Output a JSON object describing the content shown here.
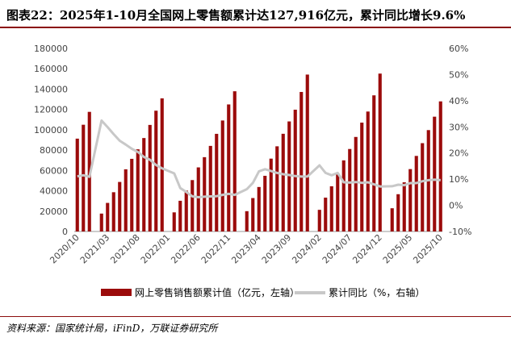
{
  "title": "图表22：2025年1-10月全国网上零售额累计达127,916亿元，累计同比增长9.6%",
  "source": "资料来源：国家统计局，iFinD，万联证券研究所",
  "colors": {
    "bar": "#9b0b0b",
    "line": "#c8c8c8",
    "accent": "#8b0d0d"
  },
  "chart_data": {
    "type": "bar",
    "categories": [
      "2020/10",
      "2020/11",
      "2020/12",
      "2021/02",
      "2021/03",
      "2021/04",
      "2021/05",
      "2021/06",
      "2021/07",
      "2021/08",
      "2021/09",
      "2021/10",
      "2021/11",
      "2021/12",
      "2022/02",
      "2022/03",
      "2022/04",
      "2022/05",
      "2022/06",
      "2022/07",
      "2022/08",
      "2022/09",
      "2022/10",
      "2022/11",
      "2022/12",
      "2023/02",
      "2023/03",
      "2023/04",
      "2023/05",
      "2023/06",
      "2023/07",
      "2023/08",
      "2023/09",
      "2023/10",
      "2023/11",
      "2023/12",
      "2024/02",
      "2024/03",
      "2024/04",
      "2024/05",
      "2024/06",
      "2024/07",
      "2024/08",
      "2024/09",
      "2024/10",
      "2024/11",
      "2024/12",
      "2025/02",
      "2025/03",
      "2025/04",
      "2025/05",
      "2025/06",
      "2025/07",
      "2025/08",
      "2025/09",
      "2025/10"
    ],
    "x_tick_labels": [
      "2020/10",
      "2021/03",
      "2021/08",
      "2022/01",
      "2022/06",
      "2022/11",
      "2023/04",
      "2023/09",
      "2024/02",
      "2024/07",
      "2024/12",
      "2025/05",
      "2025/10"
    ],
    "series": [
      {
        "name": "网上零售销售额累计值（亿元，左轴）",
        "axis": "left",
        "values": [
          91275,
          104938,
          117601,
          17587,
          28093,
          38591,
          48693,
          61133,
          71416,
          80799,
          91871,
          104765,
          118749,
          130884,
          18791,
          30184,
          40249,
          50534,
          63007,
          73056,
          84143,
          95993,
          109124,
          124903,
          137853,
          19962,
          32863,
          43736,
          54737,
          71621,
          83735,
          96048,
          108198,
          119731,
          137166,
          154264,
          21288,
          33257,
          44436,
          56077,
          69932,
          81096,
          92938,
          107022,
          117921,
          133840,
          155225,
          22839,
          36648,
          48338,
          61325,
          74295,
          86835,
          99673,
          112863,
          127916
        ]
      },
      {
        "name": "累计同比（%，右轴）",
        "axis": "right",
        "values": [
          11.1,
          11.5,
          10.9,
          32.4,
          29.9,
          27.2,
          24.7,
          23.2,
          21.6,
          20.4,
          18.5,
          17.4,
          15.4,
          14.1,
          12.2,
          6.6,
          5.1,
          3.4,
          3.1,
          3.3,
          3.4,
          3.5,
          4.0,
          4.4,
          4.0,
          6.2,
          8.6,
          13.0,
          13.8,
          13.1,
          12.4,
          11.9,
          11.6,
          11.2,
          11.0,
          11.0,
          15.3,
          12.4,
          11.5,
          12.4,
          8.8,
          8.7,
          8.9,
          8.6,
          8.8,
          8.0,
          7.2,
          7.3,
          7.9,
          7.7,
          8.5,
          8.5,
          9.2,
          9.6,
          9.8,
          9.6
        ]
      }
    ],
    "y_left": {
      "min": 0,
      "max": 180000,
      "ticks": [
        0,
        20000,
        40000,
        60000,
        80000,
        100000,
        120000,
        140000,
        160000,
        180000
      ]
    },
    "y_right": {
      "min": -10,
      "max": 60,
      "ticks": [
        "-10%",
        "0%",
        "10%",
        "20%",
        "30%",
        "40%",
        "50%",
        "60%"
      ]
    },
    "grid": false,
    "legend_position": "bottom"
  }
}
